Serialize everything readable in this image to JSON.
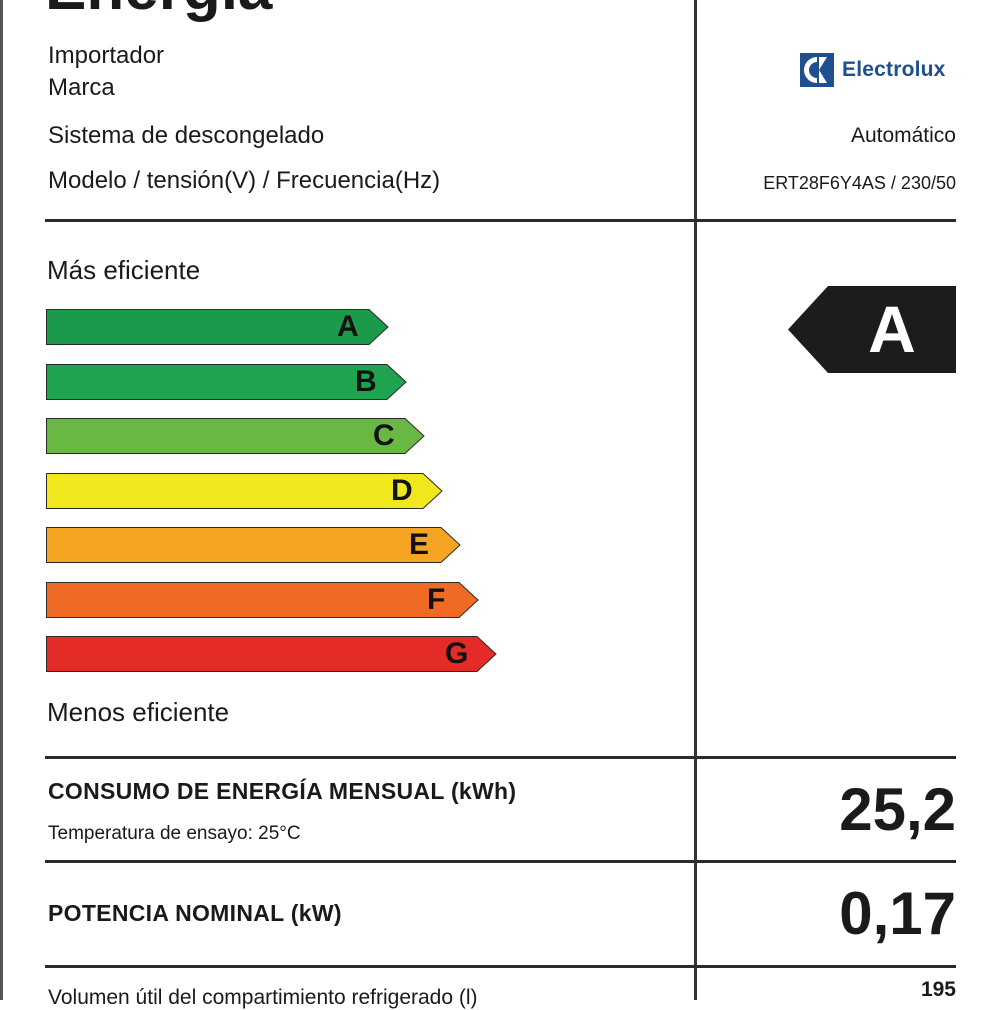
{
  "label": {
    "title": "Energía",
    "importer_label": "Importador",
    "brand_label": "Marca",
    "brand_logo_text": "Electrolux",
    "defrost_label": "Sistema de descongelado",
    "defrost_value": "Automático",
    "model_label": "Modelo / tensión(V) / Frecuencia(Hz)",
    "model_value": "ERT28F6Y4AS / 230/50",
    "more_efficient": "Más eficiente",
    "less_efficient": "Menos eficiente",
    "classes": [
      {
        "letter": "A",
        "color": "#1a9a4a"
      },
      {
        "letter": "B",
        "color": "#1fa34e"
      },
      {
        "letter": "C",
        "color": "#6ab844"
      },
      {
        "letter": "D",
        "color": "#f0e81c"
      },
      {
        "letter": "E",
        "color": "#f6a423"
      },
      {
        "letter": "F",
        "color": "#ef6b25"
      },
      {
        "letter": "G",
        "color": "#e52b27"
      }
    ],
    "rating": {
      "letter": "A",
      "color": "#1c1c1c"
    },
    "monthly_consumption_label": "CONSUMO DE ENERGÍA MENSUAL (kWh)",
    "test_temperature": "Temperatura de ensayo: 25°C",
    "monthly_consumption_value": "25,2",
    "nominal_power_label": "POTENCIA NOMINAL (kW)",
    "nominal_power_value": "0,17",
    "volume_label": "Volumen útil del compartimiento refrigerado (l)",
    "volume_value": "195"
  }
}
